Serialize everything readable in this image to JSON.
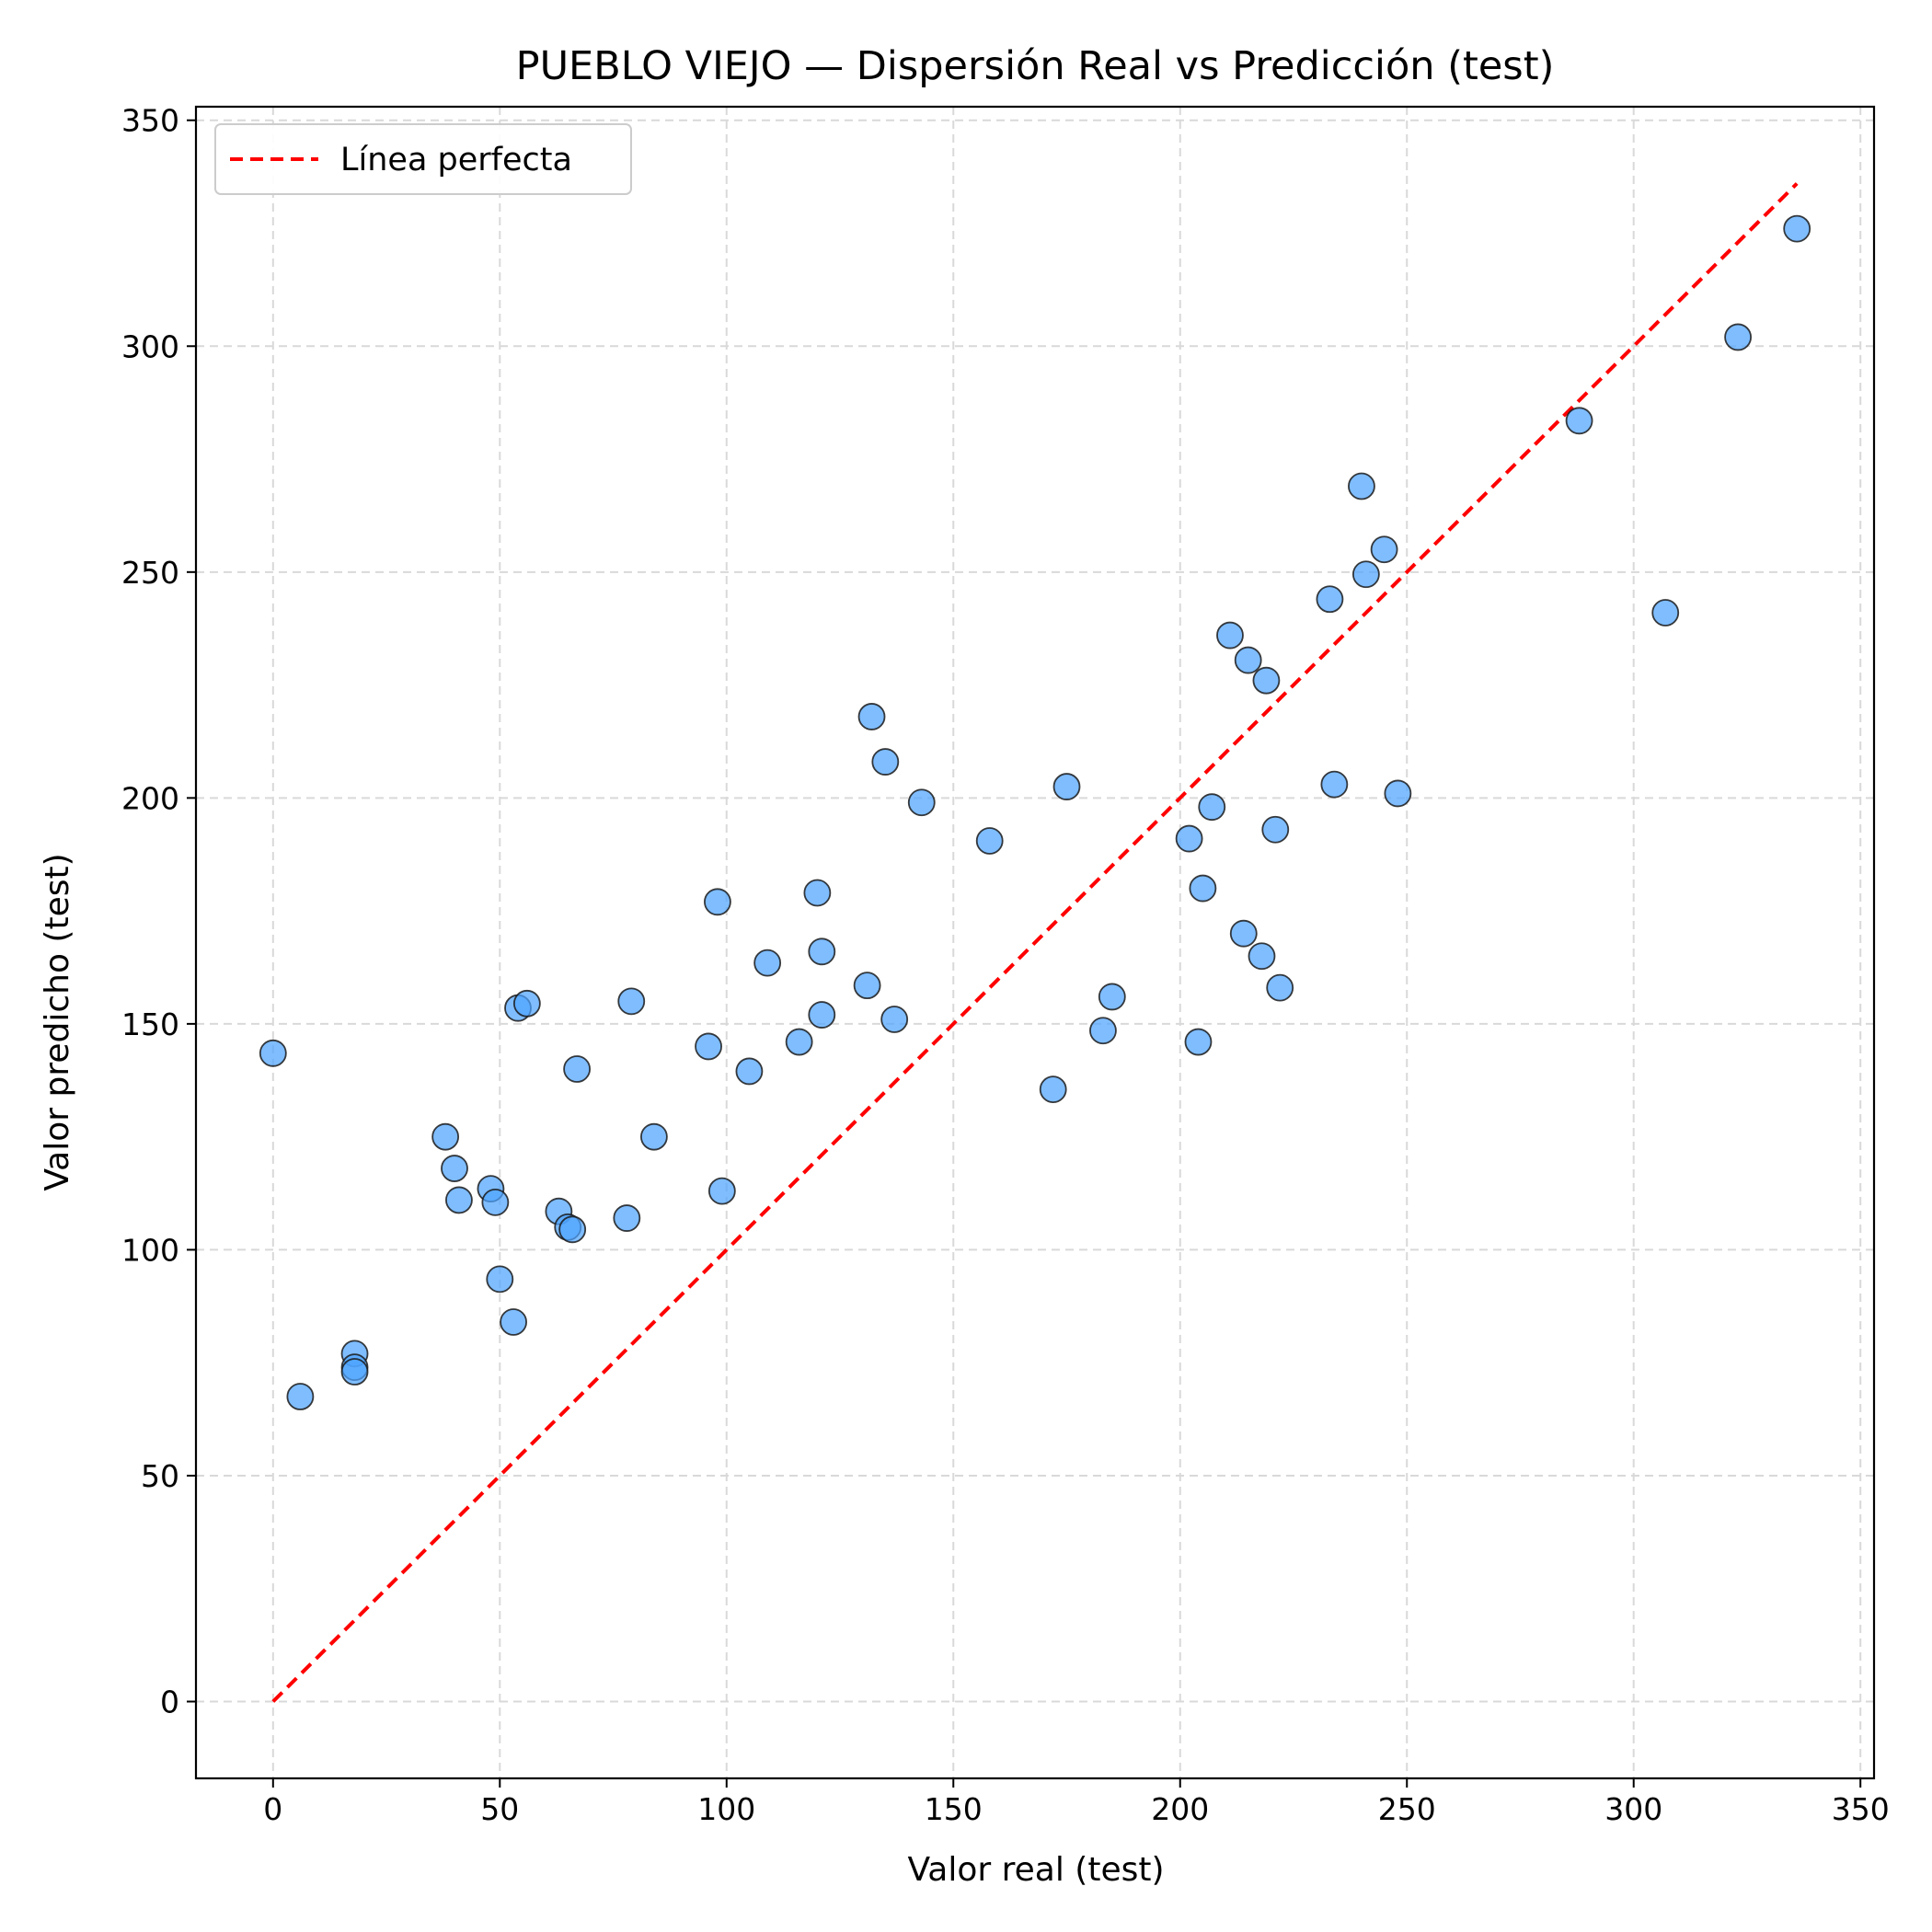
{
  "chart_data": {
    "type": "scatter",
    "title": "PUEBLO VIEJO — Dispersión Real vs Predicción (test)",
    "xlabel": "Valor real (test)",
    "ylabel": "Valor predicho (test)",
    "xlim": [
      -17,
      353
    ],
    "ylim": [
      -17,
      353
    ],
    "xticks": [
      0,
      50,
      100,
      150,
      200,
      250,
      300,
      350
    ],
    "yticks": [
      0,
      50,
      100,
      150,
      200,
      250,
      300,
      350
    ],
    "grid": true,
    "legend_position": "top-left",
    "series": [
      {
        "type": "scatter",
        "color": "#4da3ff",
        "points": [
          [
            0,
            143.5
          ],
          [
            6,
            67.5
          ],
          [
            18,
            77
          ],
          [
            18,
            74
          ],
          [
            18,
            73
          ],
          [
            38,
            125
          ],
          [
            40,
            118
          ],
          [
            41,
            111
          ],
          [
            48,
            113.5
          ],
          [
            49,
            110.5
          ],
          [
            50,
            93.5
          ],
          [
            53,
            84
          ],
          [
            54,
            153.5
          ],
          [
            56,
            154.5
          ],
          [
            63,
            108.5
          ],
          [
            65,
            105
          ],
          [
            66,
            104.5
          ],
          [
            67,
            140
          ],
          [
            78,
            107
          ],
          [
            79,
            155
          ],
          [
            84,
            125
          ],
          [
            96,
            145
          ],
          [
            98,
            177
          ],
          [
            99,
            113
          ],
          [
            105,
            139.5
          ],
          [
            109,
            163.5
          ],
          [
            116,
            146
          ],
          [
            120,
            179
          ],
          [
            121,
            166
          ],
          [
            121,
            152
          ],
          [
            131,
            158.5
          ],
          [
            132,
            218
          ],
          [
            135,
            208
          ],
          [
            137,
            151
          ],
          [
            143,
            199
          ],
          [
            158,
            190.5
          ],
          [
            172,
            135.5
          ],
          [
            175,
            202.5
          ],
          [
            183,
            148.5
          ],
          [
            185,
            156
          ],
          [
            202,
            191
          ],
          [
            204,
            146
          ],
          [
            205,
            180
          ],
          [
            207,
            198
          ],
          [
            211,
            236
          ],
          [
            214,
            170
          ],
          [
            215,
            230.5
          ],
          [
            218,
            165
          ],
          [
            219,
            226
          ],
          [
            221,
            193
          ],
          [
            222,
            158
          ],
          [
            233,
            244
          ],
          [
            234,
            203
          ],
          [
            240,
            269
          ],
          [
            241,
            249.5
          ],
          [
            245,
            255
          ],
          [
            248,
            201
          ],
          [
            288,
            283.5
          ],
          [
            307,
            241
          ],
          [
            323,
            302
          ],
          [
            336,
            326
          ]
        ]
      },
      {
        "type": "line",
        "name": "Línea perfecta",
        "color": "#ff0000",
        "x": [
          0,
          336
        ],
        "y": [
          0,
          336
        ]
      }
    ]
  }
}
